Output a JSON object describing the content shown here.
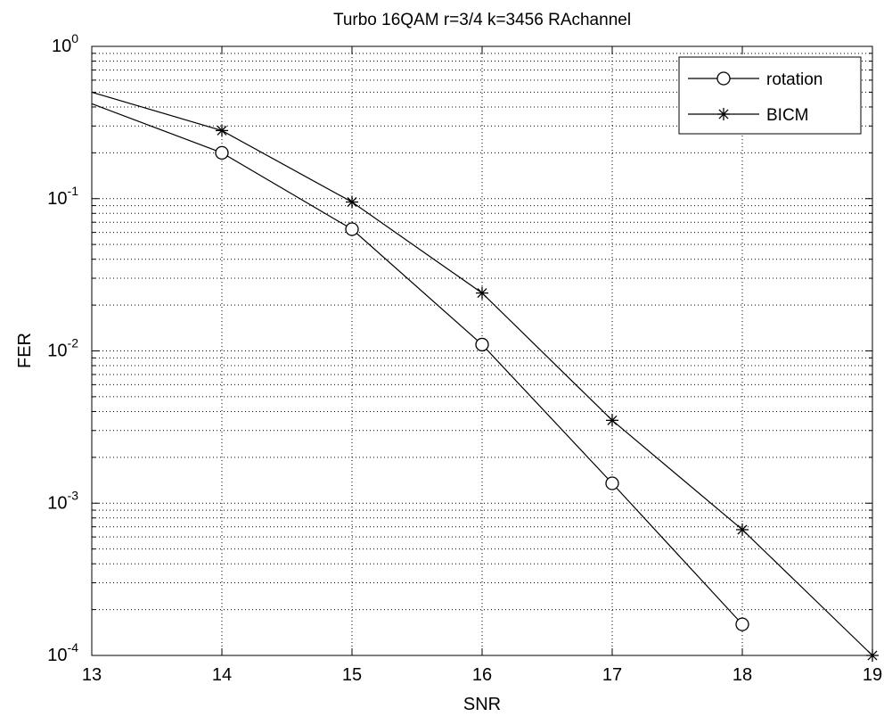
{
  "chart_data": {
    "type": "line",
    "title": "Turbo 16QAM r=3/4 k=3456 RAchannel",
    "xlabel": "SNR",
    "ylabel": "FER",
    "xlim": [
      13,
      19
    ],
    "ylim": [
      0.0001,
      1
    ],
    "yscale": "log",
    "grid": true,
    "legend_position": "top-right",
    "xticks": [
      "13",
      "14",
      "15",
      "16",
      "17",
      "18",
      "19"
    ],
    "yticks": [
      {
        "base": "10",
        "exp": "0"
      },
      {
        "base": "10",
        "exp": "-1"
      },
      {
        "base": "10",
        "exp": "-2"
      },
      {
        "base": "10",
        "exp": "-3"
      },
      {
        "base": "10",
        "exp": "-4"
      }
    ],
    "series": [
      {
        "name": "rotation",
        "marker": "circle",
        "color": "#000000",
        "x": [
          13,
          14,
          15,
          16,
          17,
          18
        ],
        "y": [
          0.42,
          0.2,
          0.063,
          0.011,
          0.00135,
          0.00016
        ],
        "markers_at": [
          14,
          15,
          16,
          17,
          18
        ]
      },
      {
        "name": "BICM",
        "marker": "asterisk",
        "color": "#000000",
        "x": [
          13,
          14,
          15,
          16,
          17,
          18,
          19
        ],
        "y": [
          0.5,
          0.28,
          0.095,
          0.024,
          0.0035,
          0.00067,
          0.0001
        ],
        "markers_at": [
          14,
          15,
          16,
          17,
          18,
          19
        ]
      }
    ]
  }
}
